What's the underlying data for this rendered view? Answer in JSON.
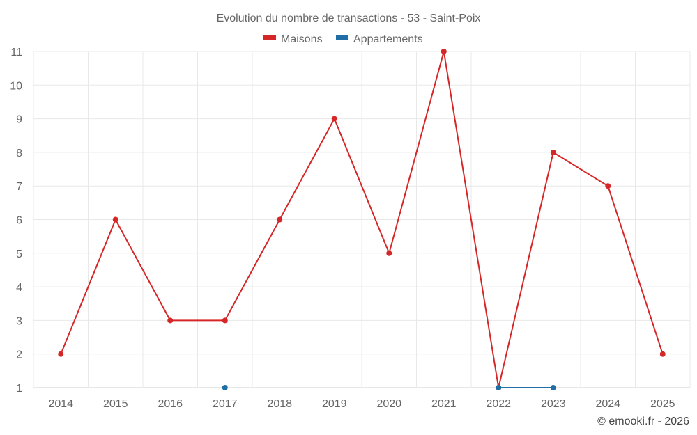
{
  "chart_data": {
    "type": "line",
    "title": "Evolution du nombre de transactions - 53 - Saint-Poix",
    "categories": [
      "2014",
      "2015",
      "2016",
      "2017",
      "2018",
      "2019",
      "2020",
      "2021",
      "2022",
      "2023",
      "2024",
      "2025"
    ],
    "series": [
      {
        "name": "Maisons",
        "color": "#d62728",
        "values": [
          2,
          6,
          3,
          3,
          6,
          9,
          5,
          11,
          1,
          8,
          7,
          2
        ]
      },
      {
        "name": "Appartements",
        "color": "#1f6fa6",
        "values": [
          null,
          null,
          null,
          1,
          null,
          null,
          null,
          null,
          1,
          1,
          null,
          null
        ]
      }
    ],
    "ylim": [
      1,
      11
    ],
    "yticks": [
      1,
      2,
      3,
      4,
      5,
      6,
      7,
      8,
      9,
      10,
      11
    ],
    "grid": true,
    "legend_position": "top-center"
  },
  "credit": "© emooki.fr - 2026"
}
